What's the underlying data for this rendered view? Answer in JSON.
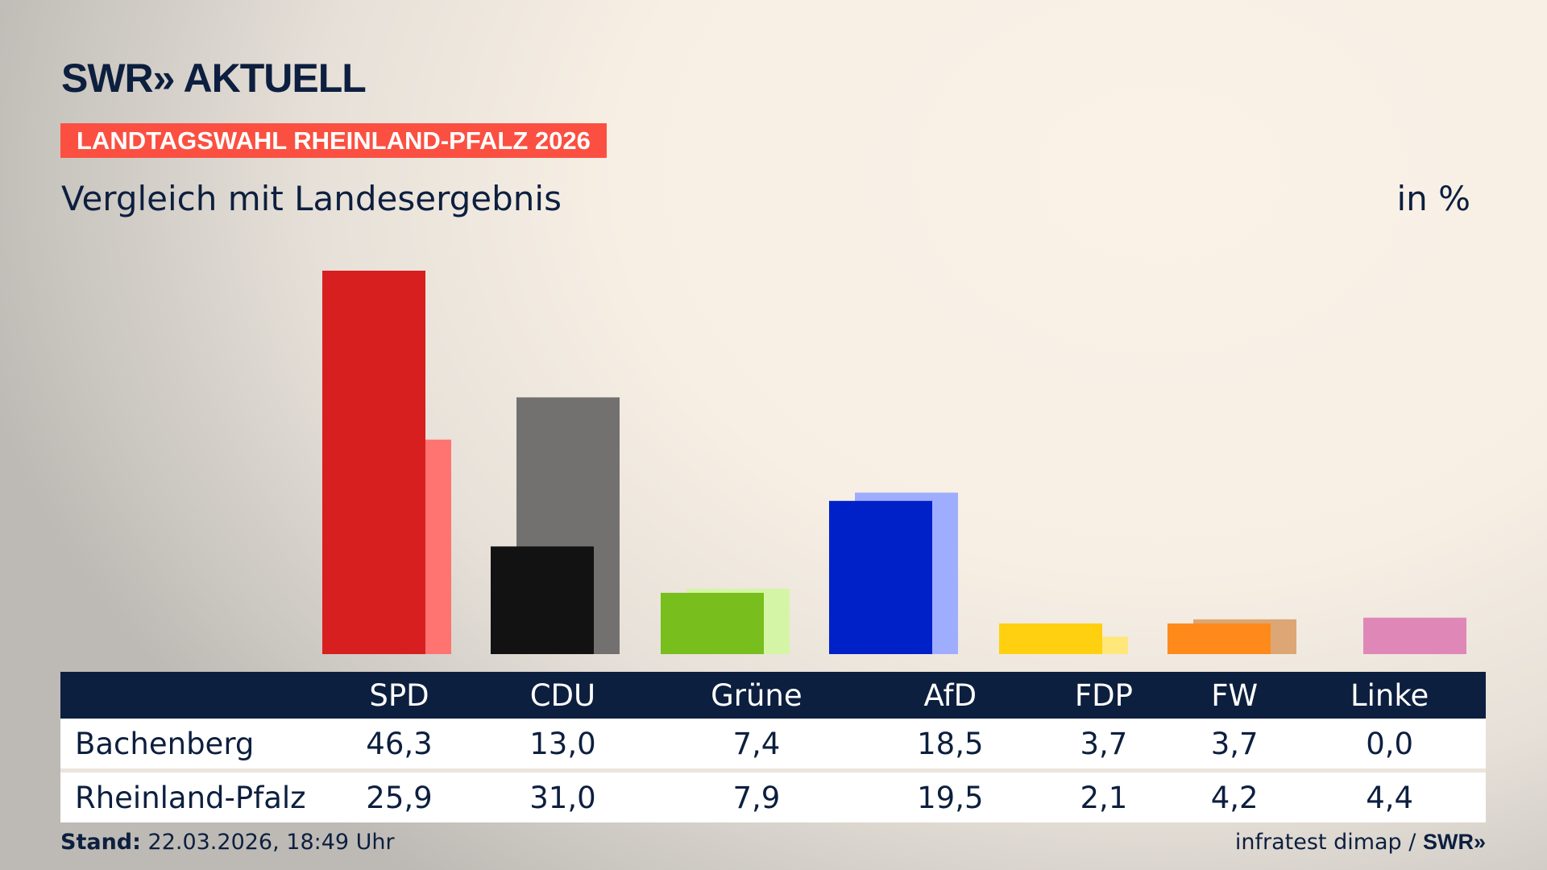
{
  "logo": "SWR» AKTUELL",
  "badge": "LANDTAGSWAHL RHEINLAND-PFALZ 2026",
  "subtitle": "Vergleich mit Landesergebnis",
  "unit": "in %",
  "footer": {
    "stand_label": "Stand:",
    "stand_value": "22.03.2026, 18:49 Uhr",
    "source": "infratest dimap /",
    "source_logo": "SWR»"
  },
  "chart_data": {
    "type": "bar",
    "categories": [
      "SPD",
      "CDU",
      "Grüne",
      "AfD",
      "FDP",
      "FW",
      "Linke"
    ],
    "series": [
      {
        "name": "Bachenberg",
        "values": [
          46.3,
          13.0,
          7.4,
          18.5,
          3.7,
          3.7,
          0.0
        ],
        "colors": [
          "#d71f1f",
          "#121212",
          "#78be1c",
          "#0021c8",
          "#ffd00f",
          "#ff8a1c",
          "#df88b8"
        ]
      },
      {
        "name": "Rheinland-Pfalz",
        "values": [
          25.9,
          31.0,
          7.9,
          19.5,
          2.1,
          4.2,
          4.4
        ],
        "colors": [
          "#ff7470",
          "#737170",
          "#d5f5a6",
          "#9fadff",
          "#ffe77a",
          "#dca774",
          "#df88b8"
        ]
      }
    ],
    "labels": {
      "Bachenberg": [
        "46,3",
        "13,0",
        "7,4",
        "18,5",
        "3,7",
        "3,7",
        "0,0"
      ],
      "Rheinland-Pfalz": [
        "25,9",
        "31,0",
        "7,9",
        "19,5",
        "2,1",
        "4,2",
        "4,4"
      ]
    },
    "ylim": [
      0,
      46.3
    ],
    "grid": false
  }
}
